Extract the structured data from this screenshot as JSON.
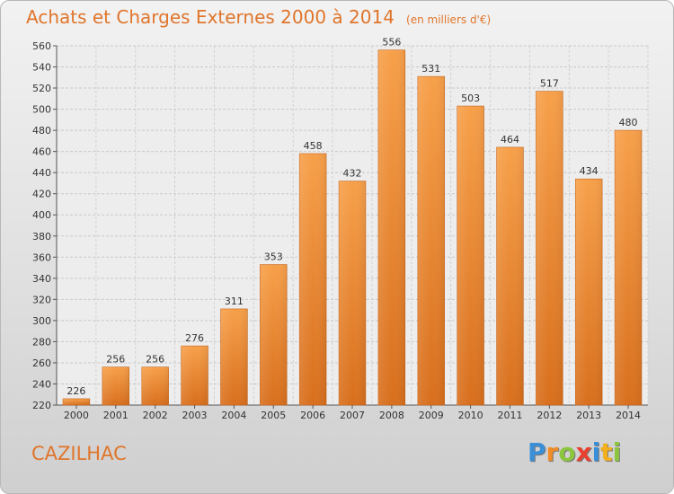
{
  "chart_data": {
    "type": "bar",
    "title": "Achats et Charges Externes 2000 à 2014",
    "unit": "(en milliers d'€)",
    "categories": [
      "2000",
      "2001",
      "2002",
      "2003",
      "2004",
      "2005",
      "2006",
      "2007",
      "2008",
      "2009",
      "2010",
      "2011",
      "2012",
      "2013",
      "2014"
    ],
    "values": [
      226,
      256,
      256,
      276,
      311,
      353,
      458,
      432,
      556,
      531,
      503,
      464,
      517,
      434,
      480
    ],
    "ylim": [
      220,
      560
    ],
    "ytick_step": 20,
    "grid": true,
    "bar_color": "#f0923a",
    "bar_color_dark": "#d66f1c"
  },
  "town": "CAZILHAC",
  "brand": [
    "P",
    "r",
    "o",
    "x",
    "i",
    "t",
    "i"
  ],
  "colors": {
    "accent": "#e0752b"
  }
}
